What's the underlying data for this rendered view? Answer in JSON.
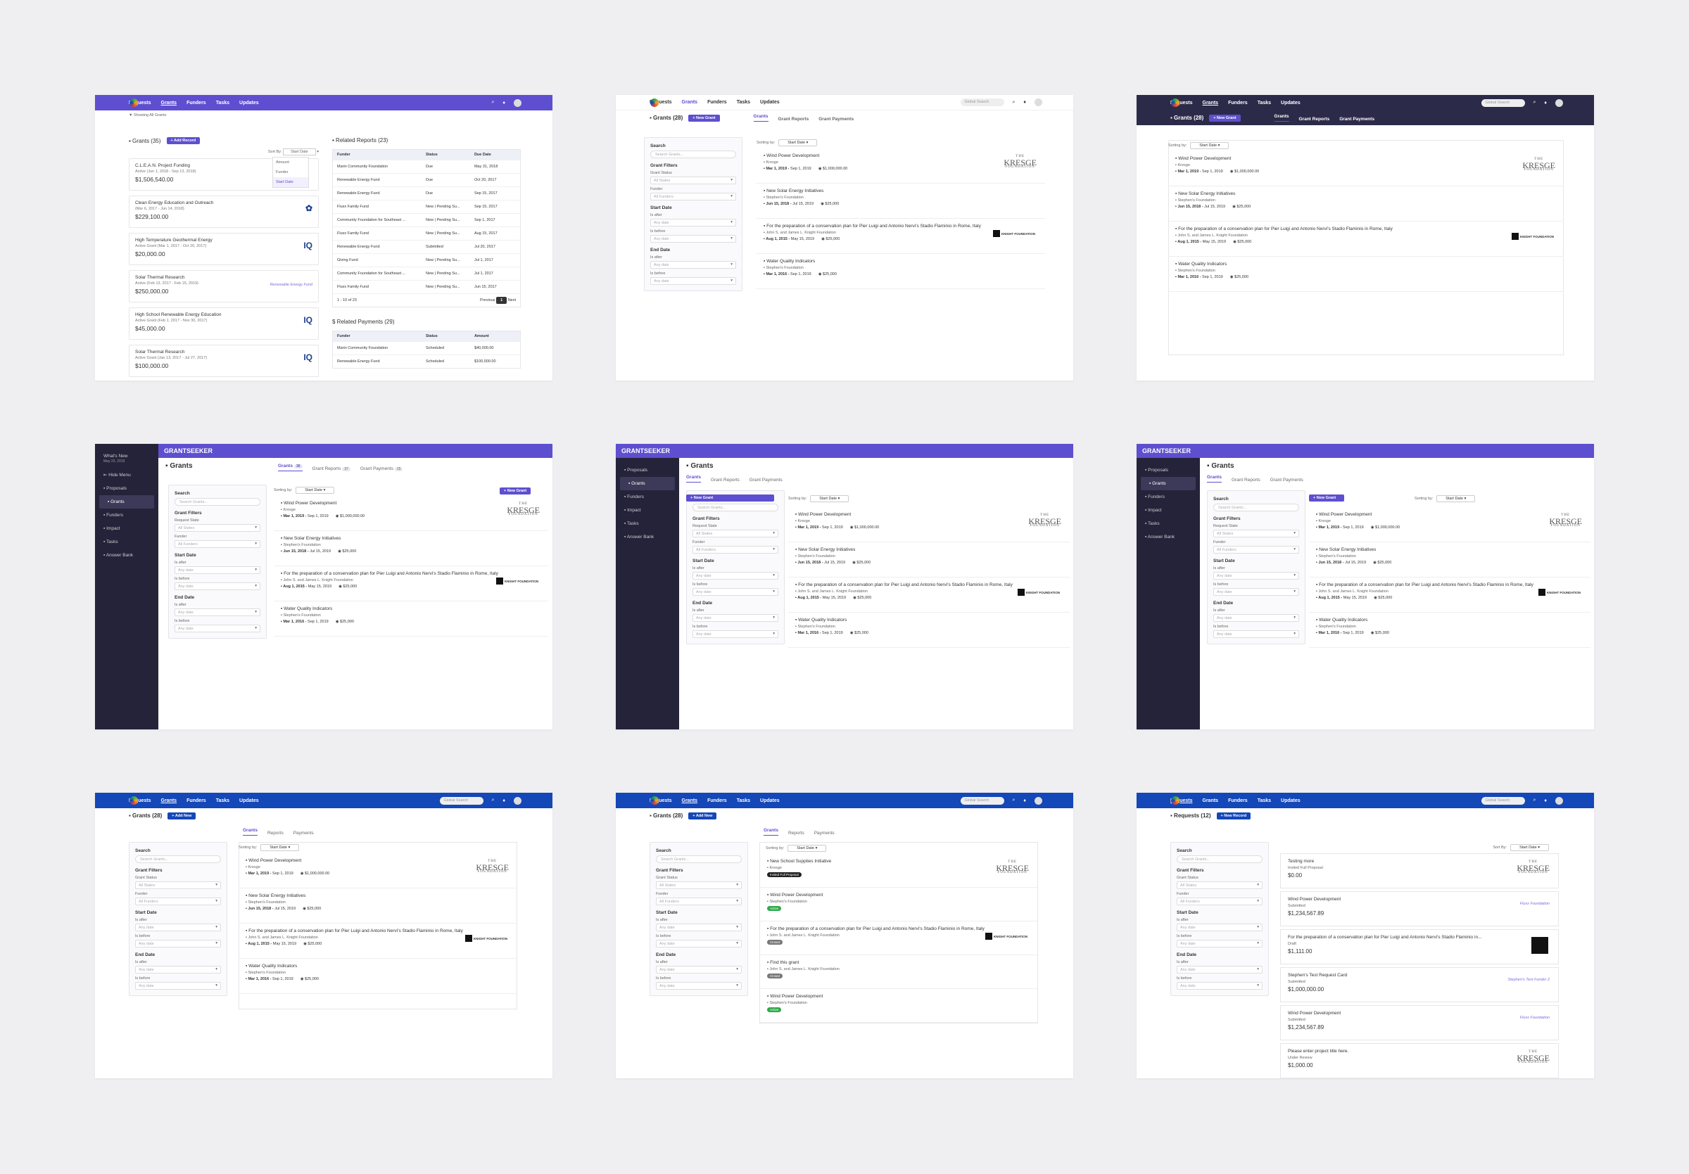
{
  "s1": {
    "nav": [
      "Requests",
      "Grants",
      "Funders",
      "Tasks",
      "Updates"
    ],
    "showing": "Showing All Grants",
    "title": "Grants (35)",
    "add": "+ Add Record",
    "sortby": "Sort By:",
    "sortval": "Start Date",
    "dropdown": [
      "Amount",
      "Funder",
      "Start Date"
    ],
    "cards": [
      {
        "t": "C.L.E.A.N. Project Funding",
        "s": "Active (Jun 1, 2018 - Sep 13, 2018)",
        "m": "$1,506,540.00",
        "lg": ""
      },
      {
        "t": "Clean Energy Education and Outreach",
        "s": "(Mar 6, 2017 - Jun 14, 2018)",
        "m": "$229,100.00",
        "lg": "✿"
      },
      {
        "t": "High Temperature Geothermal Energy",
        "s": "Active Grant (Mar 1, 2017 - Oct 20, 2017)",
        "m": "$20,000.00",
        "lg": "IQ"
      },
      {
        "t": "Solar Thermal Research",
        "s": "Active (Feb 13, 2017 - Feb 15, 2019)",
        "m": "$250,000.00",
        "lg": "Renewable Energy Fund"
      },
      {
        "t": "High School Renewable Energy Education",
        "s": "Active Grant (Feb 1, 2017 - Nov 30, 2017)",
        "m": "$45,000.00",
        "lg": "IQ"
      },
      {
        "t": "Solar Thermal Research",
        "s": "Active Grant (Jan 13, 2017 - Jul 27, 2017)",
        "m": "$100,000.00",
        "lg": "IQ"
      }
    ],
    "rr_title": "Related Reports (23)",
    "rr_head": [
      "Funder",
      "Status",
      "Due Date"
    ],
    "rr_rows": [
      [
        "Marin Community Foundation",
        "Due",
        "May 31, 2018"
      ],
      [
        "Renewable Energy Fund",
        "Due",
        "Oct 20, 2017"
      ],
      [
        "Renewable Energy Fund",
        "Due",
        "Sep 15, 2017"
      ],
      [
        "Fluxx Family Fund",
        "New | Pending Su...",
        "Sep 15, 2017"
      ],
      [
        "Community Foundation for Southeast ...",
        "New | Pending Su...",
        "Sep 1, 2017"
      ],
      [
        "Fluxx Family Fund",
        "New | Pending Su...",
        "Aug 15, 2017"
      ],
      [
        "Renewable Energy Fund",
        "Submitted",
        "Jul 20, 2017"
      ],
      [
        "Giving Fund",
        "New | Pending Su...",
        "Jul 1, 2017"
      ],
      [
        "Community Foundation for Southeast ...",
        "New | Pending Su...",
        "Jul 1, 2017"
      ],
      [
        "Fluxx Family Fund",
        "New | Pending Su...",
        "Jun 15, 2017"
      ]
    ],
    "rr_foot": "1 - 10 of 23",
    "prev": "Previous",
    "page": "1",
    "next": "Next",
    "rp_title": "Related Payments (29)",
    "rp_head": [
      "Funder",
      "Status",
      "Amount"
    ],
    "rp_rows": [
      [
        "Marin Community Foundation",
        "Scheduled",
        "$40,000.00"
      ],
      [
        "Renewable Energy Fund",
        "Scheduled",
        "$100,000.00"
      ]
    ]
  },
  "grants": [
    {
      "t": "Wind Power Development",
      "f": "Kresge",
      "d": "Mar 1, 2019",
      "e": "Sep 1, 2019",
      "a": "$1,000,000.00",
      "logo": "kresge"
    },
    {
      "t": "New Solar Energy Initiatives",
      "f": "Stephen's Foundation",
      "d": "Jun 15, 2018",
      "e": "Jul 15, 2019",
      "a": "$25,000",
      "logo": ""
    },
    {
      "t": "For the preparation of a conservation plan for Pier Luigi and Antonio Nervi's Stadio Flaminio in Rome, Italy",
      "f": "John S. and James L. Knight Foundation",
      "d": "Aug 1, 2015",
      "e": "May 15, 2019",
      "a": "$25,000",
      "logo": "knight"
    },
    {
      "t": "Water Quality Indicators",
      "f": "Stephen's Foundation",
      "d": "Mar 1, 2016",
      "e": "Sep 1, 2019",
      "a": "$25,000",
      "logo": ""
    }
  ],
  "kresge": {
    "the": "THE",
    "name": "KRESGE",
    "found": "FOUNDATION"
  },
  "knight": "KNIGHT FOUNDATION",
  "common": {
    "global": "Global Search",
    "grants28": "Grants (28)",
    "newgrant": "+ New Grant",
    "addnew": "+ Add New",
    "tabs1": [
      "Grants",
      "Grant Reports",
      "Grant Payments"
    ],
    "tabs2": [
      "Grants",
      "Reports",
      "Payments"
    ],
    "sorting": "Sorting by:",
    "start": "Start Date",
    "search": "Search",
    "searchph": "Search Grants...",
    "gf": "Grant Filters",
    "gs": "Grant Status",
    "rs": "Request State",
    "all": "All States",
    "funder": "Funder",
    "allf": "All Funders",
    "sd": "Start Date",
    "after": "Is after",
    "before": "Is before",
    "any": "Any date",
    "ed": "End Date"
  },
  "side": {
    "whatsnew": "What's New",
    "wdate": "May 23, 2019",
    "hide": "Hide Menu",
    "items": [
      "Proposals",
      "Grants",
      "Funders",
      "Impact",
      "Tasks",
      "Answer Bank"
    ],
    "brand": "GRANTSEEKER",
    "title": "Grants",
    "c1": "36",
    "c2": "37",
    "c3": "15"
  },
  "s8": {
    "items": [
      {
        "t": "New School Supplies Initiative",
        "f": "Kresge",
        "b": "Invited Full Proposal",
        "bc": "#222"
      },
      {
        "t": "Wind Power Development",
        "f": "Stephen's Foundation",
        "b": "Active",
        "bc": "#2eaa4a"
      },
      {
        "t": "For the preparation of a conservation plan for Pier Luigi and Antonio Nervi's Stadio Flaminio in Rome, Italy",
        "f": "John S. and James L. Knight Foundation",
        "b": "Closed",
        "bc": "#777"
      },
      {
        "t": "Find this grant",
        "f": "John S. and James L. Knight Foundation",
        "b": "Closed",
        "bc": "#777"
      },
      {
        "t": "Wind Power Development",
        "f": "Stephen's Foundation",
        "b": "Active",
        "bc": "#2eaa4a"
      }
    ]
  },
  "s9": {
    "title": "Requests (12)",
    "newrec": "+ New Record",
    "sortby": "Sort By:",
    "items": [
      {
        "t": "Testing more",
        "s": "Invited Full Proposal",
        "m": "$0.00",
        "r": "kresge"
      },
      {
        "t": "Wind Power Development",
        "s": "Submitted",
        "m": "$1,234,567.89",
        "r": "Fluxx Foundation"
      },
      {
        "t": "For the preparation of a conservation plan for Pier Luigi and Antonio Nervi's Stadio Flaminio in...",
        "s": "Draft",
        "m": "$1,111.00",
        "r": "box"
      },
      {
        "t": "Stephen's Test Request Card",
        "s": "Submitted",
        "m": "$1,000,000.00",
        "r": "Stephen's Test Funder 2"
      },
      {
        "t": "Wind Power Development",
        "s": "Submitted",
        "m": "$1,234,567.89",
        "r": "Fluxx Foundation"
      },
      {
        "t": "Please enter project title here.",
        "s": "Under Review",
        "m": "$1,000.00",
        "r": "kresge"
      }
    ]
  },
  "colors": {
    "purple": "#5d4fcf",
    "dark": "#2c2a49",
    "blue": "#1447b8"
  }
}
